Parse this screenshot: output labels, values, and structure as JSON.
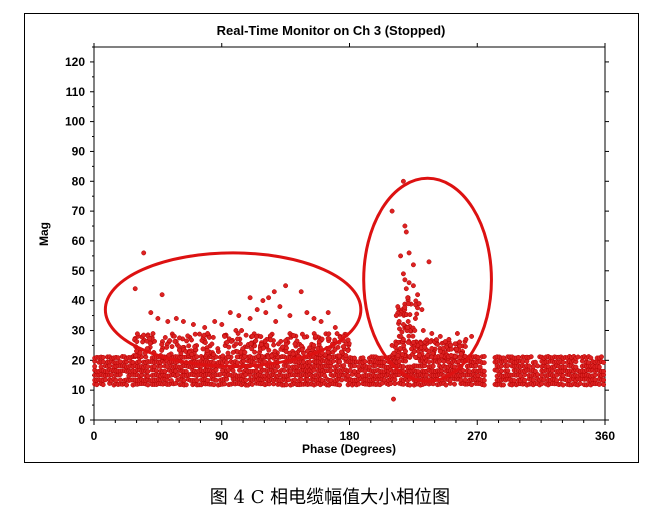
{
  "caption": "图 4   C 相电缆幅值大小相位图",
  "colors": {
    "point": "#dd2222",
    "point_stroke": "#b00000",
    "ellipse": "#dd1111",
    "axis": "#000000"
  },
  "chart_data": {
    "type": "scatter",
    "title": "Real-Time Monitor on Ch 3 (Stopped)",
    "xlabel": "Phase (Degrees)",
    "ylabel": "Mag",
    "xlim": [
      0,
      360
    ],
    "ylim": [
      0,
      125
    ],
    "x_ticks": [
      0,
      90,
      180,
      270,
      360
    ],
    "y_ticks": [
      0,
      10,
      20,
      30,
      40,
      50,
      60,
      70,
      80,
      90,
      100,
      110,
      120
    ],
    "grid": false,
    "series": [
      {
        "baseline_band": {
          "x_range": [
            0,
            360
          ],
          "y_range": [
            12,
            21
          ],
          "gap_x": [
            275,
            282
          ]
        },
        "points": [
          [
            29,
            44
          ],
          [
            35,
            56
          ],
          [
            48,
            42
          ],
          [
            40,
            36
          ],
          [
            45,
            34
          ],
          [
            52,
            33
          ],
          [
            58,
            34
          ],
          [
            63,
            33
          ],
          [
            70,
            32
          ],
          [
            78,
            31
          ],
          [
            85,
            33
          ],
          [
            90,
            32
          ],
          [
            96,
            36
          ],
          [
            102,
            35
          ],
          [
            104,
            30
          ],
          [
            110,
            34
          ],
          [
            115,
            37
          ],
          [
            121,
            36
          ],
          [
            128,
            33
          ],
          [
            131,
            38
          ],
          [
            135,
            45
          ],
          [
            138,
            35
          ],
          [
            146,
            43
          ],
          [
            150,
            36
          ],
          [
            155,
            34
          ],
          [
            160,
            33
          ],
          [
            165,
            36
          ],
          [
            170,
            31
          ],
          [
            176,
            28
          ],
          [
            110,
            41
          ],
          [
            119,
            40
          ],
          [
            123,
            41
          ],
          [
            127,
            43
          ],
          [
            80,
            29
          ],
          [
            92,
            28
          ],
          [
            100,
            30
          ],
          [
            210,
            70
          ],
          [
            218,
            80
          ],
          [
            219,
            65
          ],
          [
            220,
            63
          ],
          [
            216,
            55
          ],
          [
            222,
            56
          ],
          [
            225,
            52
          ],
          [
            236,
            53
          ],
          [
            218,
            49
          ],
          [
            219,
            47
          ],
          [
            220,
            44
          ],
          [
            222,
            46
          ],
          [
            225,
            45
          ],
          [
            228,
            42
          ],
          [
            229,
            39
          ],
          [
            231,
            37
          ],
          [
            221,
            41
          ],
          [
            214,
            38
          ],
          [
            213,
            35
          ],
          [
            215,
            33
          ],
          [
            218,
            32
          ],
          [
            221,
            31
          ],
          [
            226,
            30
          ],
          [
            232,
            30
          ],
          [
            238,
            29
          ],
          [
            244,
            28
          ],
          [
            250,
            27
          ],
          [
            256,
            29
          ],
          [
            262,
            27
          ],
          [
            266,
            28
          ],
          [
            218,
            27
          ],
          [
            225,
            26
          ],
          [
            238,
            24
          ],
          [
            244,
            23
          ],
          [
            210,
            25
          ],
          [
            211,
            7
          ]
        ],
        "clusters": [
          {
            "x_range": [
              28,
              180
            ],
            "y_range": [
              21,
              29
            ],
            "count": 300
          },
          {
            "x_range": [
              210,
              262
            ],
            "y_range": [
              21,
              27
            ],
            "count": 120
          },
          {
            "x_range": [
              214,
              228
            ],
            "y_range": [
              27,
              42
            ],
            "count": 40
          }
        ]
      }
    ],
    "annotations": [
      {
        "type": "ellipse",
        "cx": 98,
        "cy": 37,
        "rx": 90,
        "ry": 19
      },
      {
        "type": "ellipse",
        "cx": 235,
        "cy": 47,
        "rx": 45,
        "ry": 34
      }
    ]
  }
}
